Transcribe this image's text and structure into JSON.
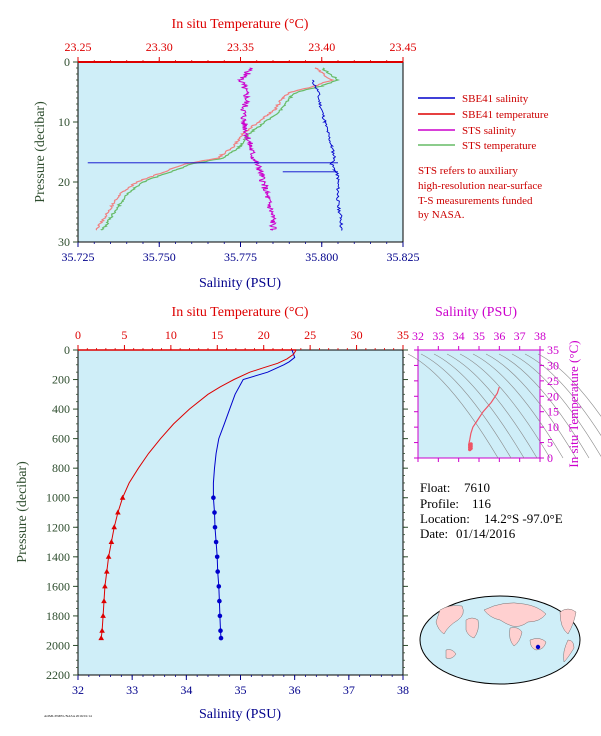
{
  "colors": {
    "plot_bg": "#cfeef8",
    "red": "#dd0000",
    "blue": "#0000cc",
    "navy": "#00008b",
    "magenta": "#cc00cc",
    "pink": "#f08080",
    "green": "#66bb66",
    "darkgreen": "#2e4d2e"
  },
  "top": {
    "temp_axis_label": "In situ Temperature (°C)",
    "temp_ticks": [
      "23.25",
      "23.30",
      "23.35",
      "23.40",
      "23.45"
    ],
    "sal_axis_label": "Salinity (PSU)",
    "sal_ticks": [
      "35.725",
      "35.750",
      "35.775",
      "35.800",
      "35.825"
    ],
    "press_axis_label": "Pressure (decibar)",
    "press_ticks": [
      "0",
      "10",
      "20",
      "30"
    ],
    "legend": [
      {
        "label": "SBE41 salinity",
        "color": "#0000cc"
      },
      {
        "label": "SBE41 temperature",
        "color": "#dd0000"
      },
      {
        "label": "STS salinity",
        "color": "#cc00cc"
      },
      {
        "label": "STS temperature",
        "color": "#66bb66"
      }
    ],
    "note": [
      "STS refers to auxiliary",
      "high-resolution near-surface",
      "T-S measurements funded",
      "by NASA."
    ]
  },
  "bottom": {
    "temp_axis_label": "In situ Temperature (°C)",
    "temp_ticks": [
      "0",
      "5",
      "10",
      "15",
      "20",
      "25",
      "30",
      "35"
    ],
    "sal_axis_label": "Salinity (PSU)",
    "sal_ticks": [
      "32",
      "33",
      "34",
      "35",
      "36",
      "37",
      "38"
    ],
    "press_axis_label": "Pressure (decibar)",
    "press_ticks": [
      "0",
      "200",
      "400",
      "600",
      "800",
      "1000",
      "1200",
      "1400",
      "1600",
      "1800",
      "2000",
      "2200"
    ]
  },
  "ts": {
    "sal_axis_label": "Salinity (PSU)",
    "temp_axis_label": "In situ Temperature (°C)",
    "sal_ticks": [
      "32",
      "33",
      "34",
      "35",
      "36",
      "37",
      "38"
    ],
    "temp_ticks": [
      "0",
      "5",
      "10",
      "15",
      "20",
      "25",
      "30",
      "35"
    ]
  },
  "info": {
    "float_label": "Float:",
    "float_value": "7610",
    "profile_label": "Profile:",
    "profile_value": "116",
    "location_label": "Location:",
    "location_value": "14.2°S  -97.0°E",
    "date_label": "Date:",
    "date_value": "01/14/2016"
  },
  "footer_code": "AOML/PMEL/NASA 2016/01/14",
  "chart_data": [
    {
      "type": "line",
      "title": "",
      "x_axes": {
        "salinity_range": [
          35.725,
          35.825
        ],
        "temperature_range": [
          23.25,
          23.45
        ]
      },
      "y_axis": {
        "label": "Pressure (decibar)",
        "range": [
          0,
          30
        ],
        "inverted": true
      },
      "series": [
        {
          "name": "SBE41 salinity",
          "pressure": [
            3,
            4,
            5,
            6,
            8,
            10,
            12,
            14,
            16,
            17,
            18,
            19,
            20,
            22,
            24,
            26,
            28
          ],
          "values": [
            35.797,
            35.798,
            35.799,
            35.799,
            35.8,
            35.801,
            35.802,
            35.803,
            35.804,
            35.803,
            35.804,
            35.805,
            35.805,
            35.805,
            35.805,
            35.806,
            35.806
          ]
        },
        {
          "name": "SBE41 temperature",
          "pressure": [
            0
          ],
          "values": [
            23.45
          ]
        },
        {
          "name": "STS salinity",
          "pressure": [
            1,
            2,
            3,
            4,
            6,
            8,
            10,
            12,
            14,
            16,
            18,
            20,
            22,
            24,
            26,
            28
          ],
          "values": [
            35.778,
            35.777,
            35.775,
            35.776,
            35.777,
            35.776,
            35.776,
            35.777,
            35.778,
            35.779,
            35.781,
            35.782,
            35.783,
            35.784,
            35.785,
            35.785
          ]
        },
        {
          "name": "STS temperature",
          "pressure": [
            1,
            2,
            3,
            4,
            5,
            6,
            8,
            10,
            12,
            14,
            16,
            17,
            18,
            19,
            20,
            21,
            22,
            24,
            26,
            28
          ],
          "values": [
            23.4,
            23.405,
            23.41,
            23.4,
            23.385,
            23.38,
            23.375,
            23.365,
            23.355,
            23.35,
            23.34,
            23.32,
            23.31,
            23.3,
            23.29,
            23.285,
            23.28,
            23.275,
            23.27,
            23.265
          ]
        }
      ]
    },
    {
      "type": "line",
      "title": "",
      "x_axes": {
        "salinity_range": [
          32,
          38
        ],
        "temperature_range": [
          0,
          35
        ]
      },
      "y_axis": {
        "label": "Pressure (decibar)",
        "range": [
          0,
          2200
        ],
        "inverted": true
      },
      "series": [
        {
          "name": "Salinity",
          "pressure": [
            0,
            50,
            80,
            100,
            150,
            200,
            300,
            400,
            500,
            600,
            700,
            800,
            900,
            1000,
            1100,
            1200,
            1300,
            1400,
            1500,
            1600,
            1700,
            1800,
            1900,
            1950
          ],
          "values": [
            35.95,
            36.0,
            35.9,
            35.8,
            35.5,
            35.05,
            34.9,
            34.8,
            34.7,
            34.6,
            34.55,
            34.52,
            34.5,
            34.5,
            34.52,
            34.53,
            34.55,
            34.57,
            34.58,
            34.6,
            34.61,
            34.62,
            34.63,
            34.64
          ]
        },
        {
          "name": "Temperature",
          "pressure": [
            0,
            30,
            60,
            90,
            120,
            150,
            200,
            250,
            300,
            400,
            500,
            600,
            700,
            800,
            900,
            1000,
            1100,
            1200,
            1300,
            1400,
            1500,
            1600,
            1700,
            1800,
            1900,
            1950
          ],
          "values": [
            23.5,
            23.2,
            22.5,
            21.5,
            20.0,
            18.5,
            16.8,
            15.3,
            14.0,
            12.0,
            10.3,
            8.9,
            7.6,
            6.5,
            5.5,
            4.8,
            4.3,
            3.9,
            3.6,
            3.3,
            3.1,
            2.9,
            2.8,
            2.7,
            2.6,
            2.5
          ]
        }
      ]
    },
    {
      "type": "line",
      "title": "",
      "x_axis": {
        "label": "Salinity (PSU)",
        "range": [
          32,
          38
        ]
      },
      "y_axis": {
        "label": "In situ Temperature (°C)",
        "range": [
          0,
          35
        ]
      },
      "series": [
        {
          "name": "T-S",
          "x": [
            36.0,
            35.9,
            35.6,
            35.2,
            34.9,
            34.7,
            34.6,
            34.55,
            34.5,
            34.6
          ],
          "y": [
            23.0,
            21.0,
            18.0,
            15.0,
            12.0,
            10.0,
            8.0,
            6.0,
            4.5,
            3.0
          ]
        }
      ]
    }
  ]
}
